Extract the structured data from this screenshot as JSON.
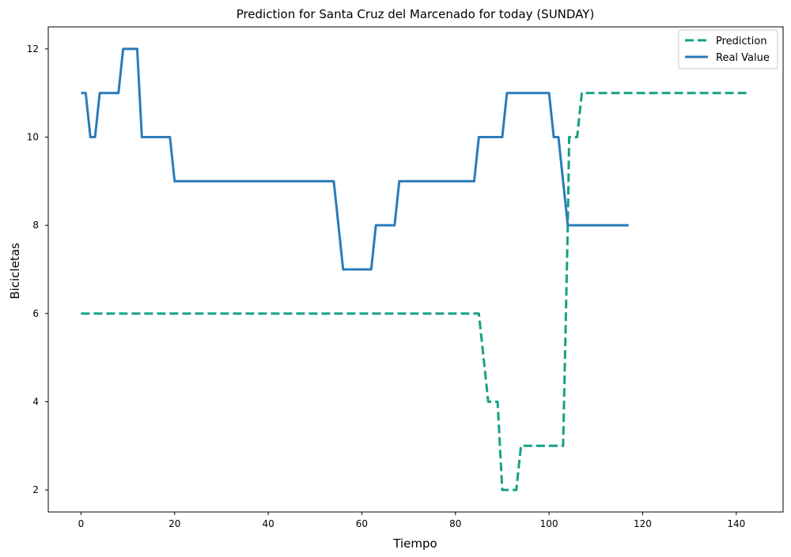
{
  "chart_data": {
    "type": "line",
    "title": "Prediction for Santa Cruz del Marcenado for today (SUNDAY)",
    "xlabel": "Tiempo",
    "ylabel": "Bicicletas",
    "xlim": [
      -7,
      150
    ],
    "ylim": [
      1.5,
      12.5
    ],
    "xticks": [
      0,
      20,
      40,
      60,
      80,
      100,
      120,
      140
    ],
    "yticks": [
      2,
      4,
      6,
      8,
      10,
      12
    ],
    "grid": false,
    "legend_position": "top-right",
    "series": [
      {
        "name": "Prediction",
        "color": "#17a085",
        "dash": "dashed",
        "points": [
          [
            0,
            6
          ],
          [
            85,
            6
          ],
          [
            87,
            4
          ],
          [
            89,
            4
          ],
          [
            90,
            2
          ],
          [
            93,
            2
          ],
          [
            94,
            3
          ],
          [
            103,
            3
          ],
          [
            104,
            8
          ],
          [
            104.3,
            10
          ],
          [
            106,
            10
          ],
          [
            107,
            11
          ],
          [
            143,
            11
          ]
        ]
      },
      {
        "name": "Real Value",
        "color": "#2b7bb9",
        "dash": "solid",
        "points": [
          [
            0,
            11
          ],
          [
            1,
            11
          ],
          [
            2,
            10
          ],
          [
            3,
            10
          ],
          [
            4,
            11
          ],
          [
            8,
            11
          ],
          [
            9,
            12
          ],
          [
            12,
            12
          ],
          [
            13,
            10
          ],
          [
            19,
            10
          ],
          [
            20,
            9
          ],
          [
            54,
            9
          ],
          [
            56,
            7
          ],
          [
            62,
            7
          ],
          [
            63,
            8
          ],
          [
            67,
            8
          ],
          [
            68,
            9
          ],
          [
            84,
            9
          ],
          [
            85,
            10
          ],
          [
            90,
            10
          ],
          [
            91,
            11
          ],
          [
            100,
            11
          ],
          [
            101,
            10
          ],
          [
            102,
            10
          ],
          [
            104,
            8
          ],
          [
            117,
            8
          ]
        ]
      }
    ]
  }
}
